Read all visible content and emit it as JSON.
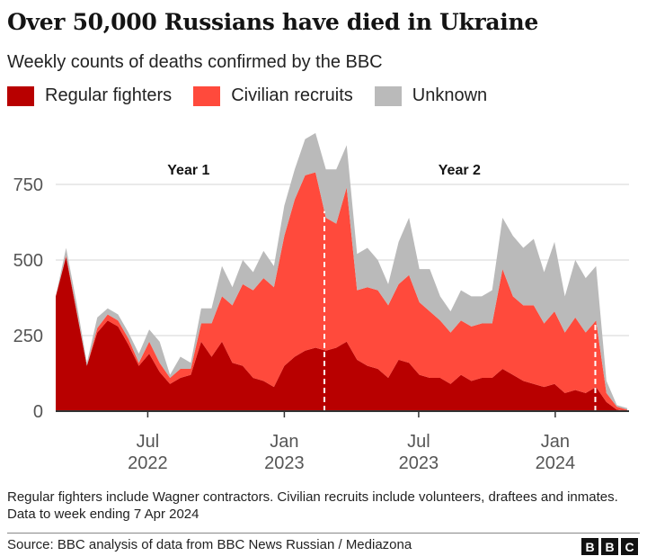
{
  "title": "Over 50,000 Russians have died in Ukraine",
  "subtitle": "Weekly counts of deaths confirmed by the BBC",
  "footnote": "Regular fighters include Wagner contractors. Civilian recruits include volunteers, draftees and inmates. Data to week ending 7 Apr 2024",
  "source": "Source: BBC analysis of data from BBC News Russian / Mediazona",
  "logo": [
    "B",
    "B",
    "C"
  ],
  "chart_data": {
    "type": "area",
    "stacked": true,
    "title": "Over 50,000 Russians have died in Ukraine",
    "subtitle": "Weekly counts of deaths confirmed by the BBC",
    "xlabel": "",
    "ylabel": "",
    "ylim": [
      0,
      950
    ],
    "yticks": [
      0,
      250,
      500,
      750
    ],
    "ytick_labels": [
      "0",
      "250",
      "500",
      "750"
    ],
    "xlim": [
      "2022-02-27",
      "2024-04-07"
    ],
    "xticks": [
      {
        "date": "2022-07-01",
        "month": "Jul",
        "year": "2022"
      },
      {
        "date": "2023-01-01",
        "month": "Jan",
        "year": "2023"
      },
      {
        "date": "2023-07-01",
        "month": "Jul",
        "year": "2023"
      },
      {
        "date": "2024-01-01",
        "month": "Jan",
        "year": "2024"
      }
    ],
    "grid": "horizontal",
    "legend_placement": "top-left",
    "annotations": [
      {
        "label": "Year 1",
        "date": "2022-08-25"
      },
      {
        "label": "Year 2",
        "date": "2023-08-25"
      }
    ],
    "year_markers": [
      "2023-02-24",
      "2024-02-24"
    ],
    "x": [
      "2022-02-27",
      "2022-03-13",
      "2022-03-27",
      "2022-04-10",
      "2022-04-24",
      "2022-05-08",
      "2022-05-22",
      "2022-06-05",
      "2022-06-19",
      "2022-07-03",
      "2022-07-17",
      "2022-07-31",
      "2022-08-14",
      "2022-08-28",
      "2022-09-11",
      "2022-09-25",
      "2022-10-09",
      "2022-10-23",
      "2022-11-06",
      "2022-11-20",
      "2022-12-04",
      "2022-12-18",
      "2023-01-01",
      "2023-01-15",
      "2023-01-29",
      "2023-02-12",
      "2023-02-26",
      "2023-03-12",
      "2023-03-26",
      "2023-04-09",
      "2023-04-23",
      "2023-05-07",
      "2023-05-21",
      "2023-06-04",
      "2023-06-18",
      "2023-07-02",
      "2023-07-16",
      "2023-07-30",
      "2023-08-13",
      "2023-08-27",
      "2023-09-10",
      "2023-09-24",
      "2023-10-08",
      "2023-10-22",
      "2023-11-05",
      "2023-11-19",
      "2023-12-03",
      "2023-12-17",
      "2023-12-31",
      "2024-01-14",
      "2024-01-28",
      "2024-02-11",
      "2024-02-25",
      "2024-03-10",
      "2024-03-24",
      "2024-04-07"
    ],
    "series": [
      {
        "name": "Regular fighters",
        "color": "#b80000",
        "values": [
          380,
          510,
          330,
          150,
          260,
          300,
          280,
          220,
          150,
          190,
          130,
          90,
          110,
          120,
          230,
          180,
          230,
          160,
          150,
          110,
          100,
          80,
          150,
          180,
          200,
          210,
          200,
          210,
          230,
          170,
          150,
          140,
          110,
          170,
          160,
          120,
          110,
          110,
          90,
          120,
          100,
          110,
          110,
          140,
          120,
          100,
          90,
          80,
          90,
          60,
          70,
          60,
          80,
          30,
          5,
          0
        ]
      },
      {
        "name": "Civilian recruits",
        "color": "#ff4a3c",
        "values": [
          0,
          5,
          5,
          0,
          15,
          20,
          20,
          20,
          10,
          40,
          30,
          20,
          30,
          20,
          60,
          110,
          150,
          190,
          270,
          290,
          340,
          330,
          430,
          520,
          580,
          580,
          440,
          410,
          510,
          230,
          260,
          260,
          240,
          250,
          290,
          240,
          220,
          190,
          170,
          180,
          180,
          180,
          180,
          330,
          260,
          250,
          260,
          210,
          240,
          200,
          240,
          200,
          220,
          30,
          10,
          5
        ]
      },
      {
        "name": "Unknown",
        "color": "#bababa",
        "values": [
          0,
          25,
          25,
          10,
          35,
          20,
          20,
          20,
          30,
          40,
          70,
          10,
          40,
          20,
          50,
          50,
          100,
          60,
          80,
          60,
          90,
          70,
          100,
          100,
          120,
          130,
          160,
          180,
          140,
          120,
          130,
          100,
          70,
          140,
          190,
          110,
          140,
          80,
          70,
          100,
          100,
          90,
          110,
          170,
          200,
          190,
          220,
          170,
          230,
          120,
          190,
          180,
          180,
          40,
          5,
          5
        ]
      }
    ]
  }
}
